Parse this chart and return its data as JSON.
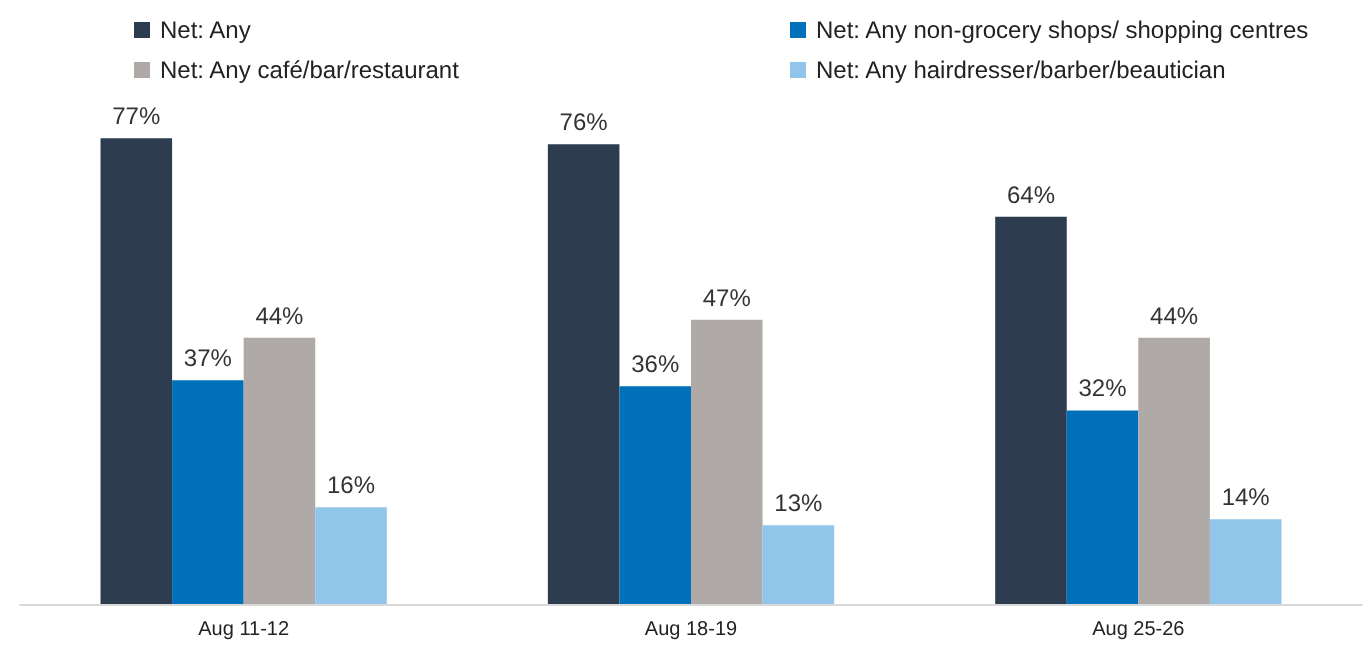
{
  "chart_data": {
    "type": "bar",
    "categories": [
      "Aug 11-12",
      "Aug 18-19",
      "Aug 25-26"
    ],
    "legend": "top",
    "series": [
      {
        "name": "Net: Any",
        "color": "#2e3c50",
        "values": [
          77,
          76,
          64
        ],
        "value_labels": [
          "77%",
          "76%",
          "64%"
        ]
      },
      {
        "name": "Net: Any non-grocery shops/ shopping centres",
        "color": "#0070bb",
        "values": [
          37,
          36,
          32
        ],
        "value_labels": [
          "37%",
          "36%",
          "32%"
        ]
      },
      {
        "name": "Net: Any café/bar/restaurant",
        "color": "#afa9a8",
        "values": [
          44,
          47,
          44
        ],
        "value_labels": [
          "44%",
          "47%",
          "44%"
        ]
      },
      {
        "name": "Net: Any hairdresser/barber/beautician",
        "color": "#92c5ea",
        "values": [
          16,
          13,
          14
        ],
        "value_labels": [
          "16%",
          "13%",
          "14%"
        ]
      }
    ]
  }
}
